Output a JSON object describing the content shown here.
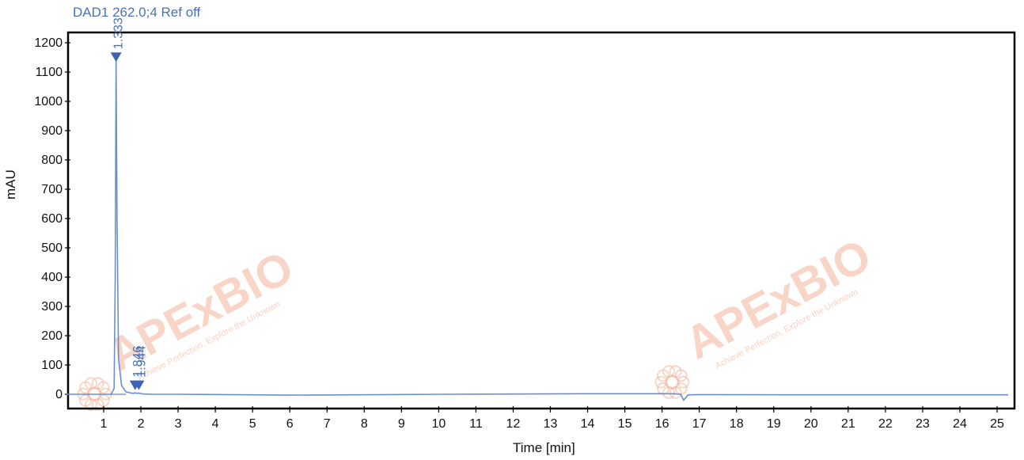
{
  "chart_data": {
    "type": "line",
    "title": "DAD1 262.0;4 Ref off",
    "xlabel": "Time [min]",
    "ylabel": "mAU",
    "xlim": [
      0,
      25.3
    ],
    "ylim": [
      -30,
      1230
    ],
    "xticks": [
      1,
      2,
      3,
      4,
      5,
      6,
      7,
      8,
      9,
      10,
      11,
      12,
      13,
      14,
      15,
      16,
      17,
      18,
      19,
      20,
      21,
      22,
      23,
      24,
      25
    ],
    "yticks": [
      0,
      100,
      200,
      300,
      400,
      500,
      600,
      700,
      800,
      900,
      1000,
      1100,
      1200
    ],
    "grid": false,
    "series": [
      {
        "x": [
          0,
          1.2,
          1.28,
          1.31,
          1.333,
          1.36,
          1.4,
          1.48,
          1.6,
          1.8,
          1.846,
          1.9,
          1.944,
          2.05,
          2.3,
          3,
          6,
          10,
          14,
          16.3,
          16.5,
          16.58,
          16.7,
          17,
          20,
          25.3
        ],
        "y": [
          0,
          0,
          20,
          400,
          1140,
          600,
          120,
          30,
          8,
          3,
          5,
          3,
          4,
          1,
          0,
          0,
          -3,
          0,
          2,
          2,
          0,
          -20,
          -2,
          -1,
          -2,
          -2
        ]
      }
    ],
    "peak_labels": [
      {
        "x": 1.333,
        "y": 1140,
        "label": "1.333"
      },
      {
        "x": 1.846,
        "y": 20,
        "label": "1.846"
      },
      {
        "x": 1.944,
        "y": 20,
        "label": "1.944"
      }
    ],
    "colors": {
      "trace": "#6a8fd0",
      "marker": "#3f63b3",
      "axis": "#111111"
    },
    "watermarks": [
      {
        "text": "APExBIO",
        "sub": "Achieve Perfection, Explore the Unknown"
      },
      {
        "text": "APExBIO",
        "sub": "Achieve Perfection, Explore the Unknown"
      }
    ]
  }
}
